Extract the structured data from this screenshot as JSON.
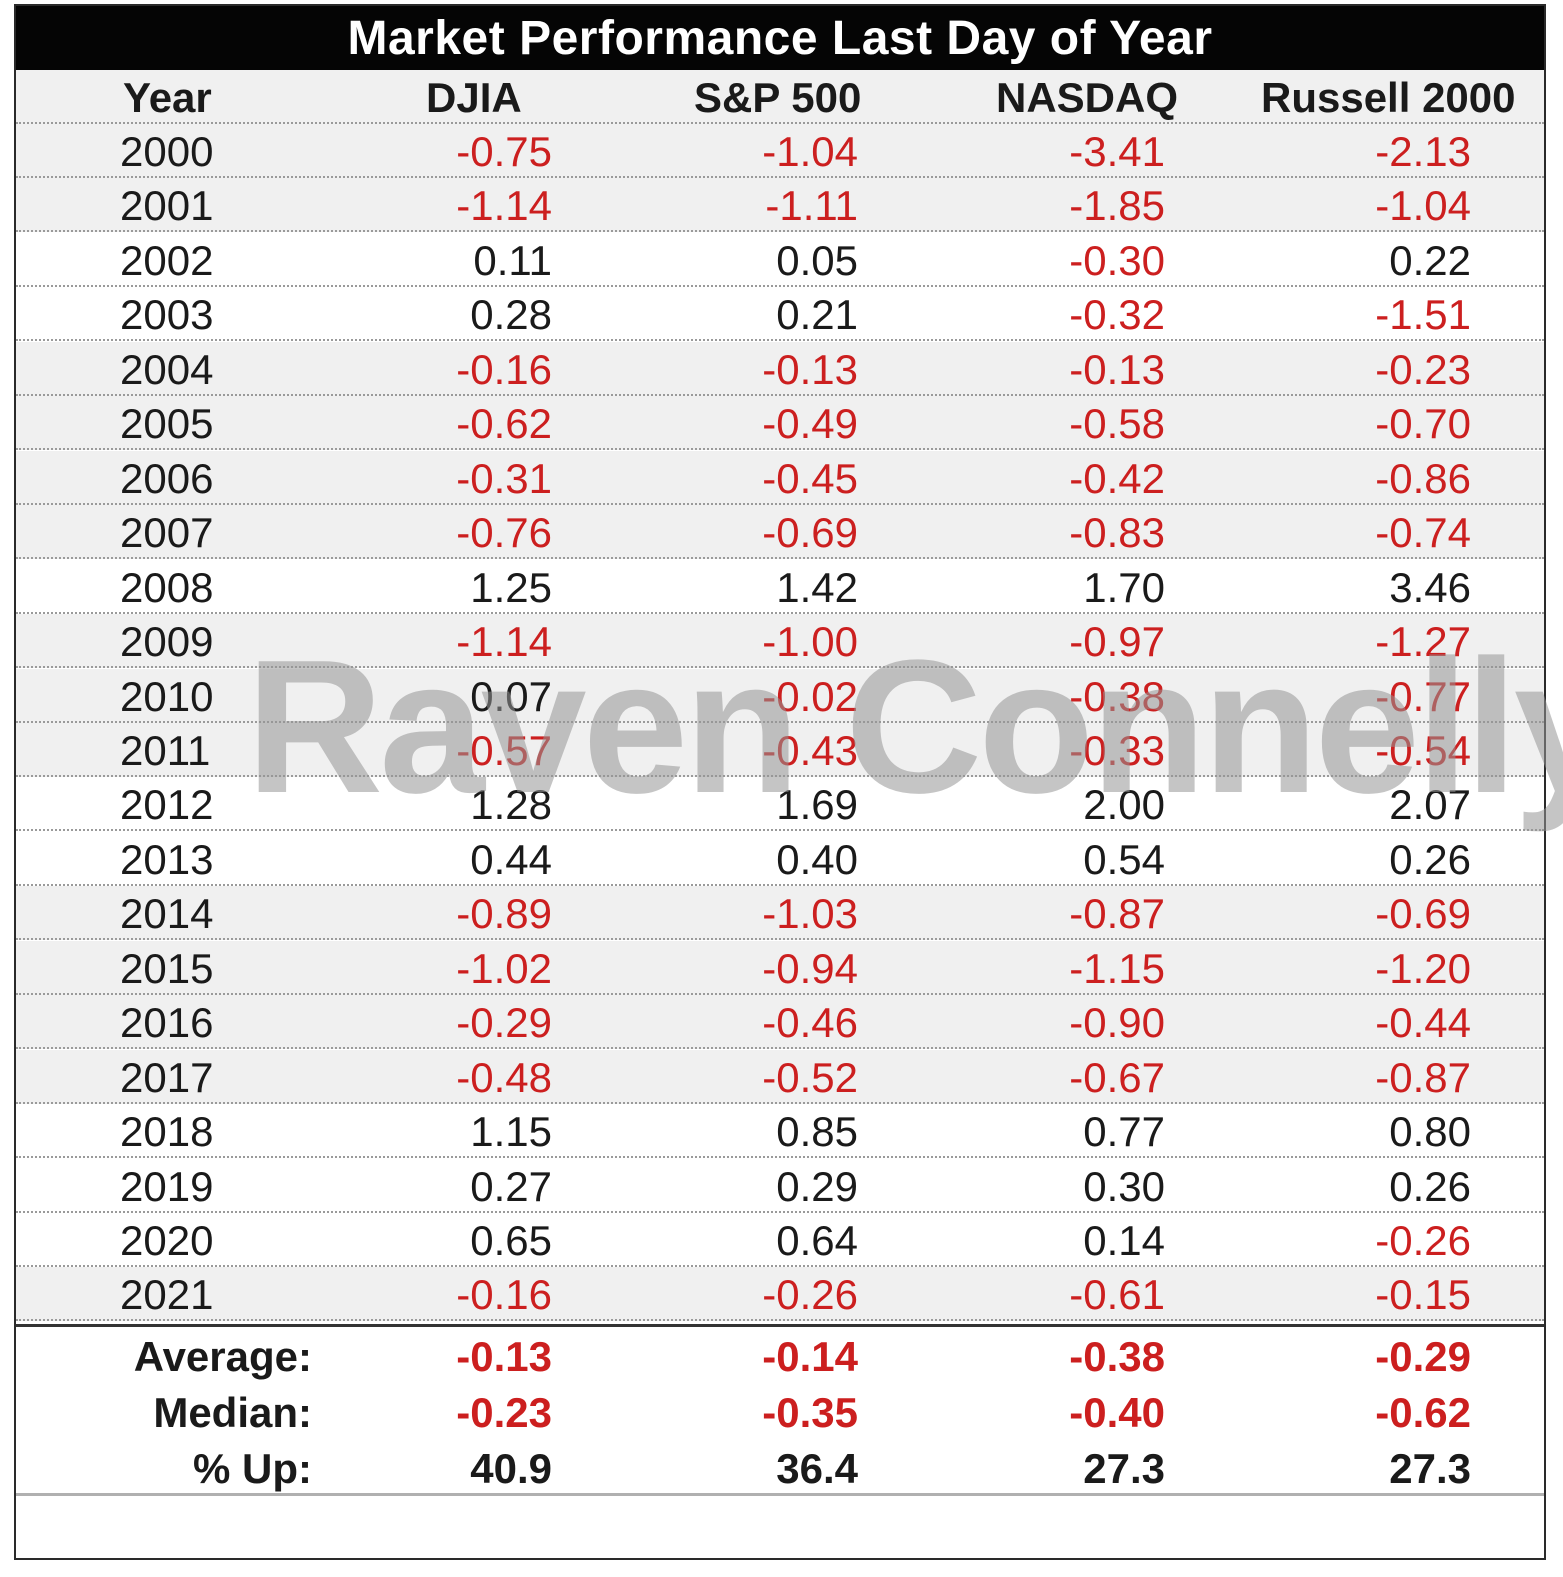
{
  "chart_data": {
    "type": "table",
    "title": "Market Performance Last Day of Year",
    "columns": [
      "Year",
      "DJIA",
      "S&P 500",
      "NASDAQ",
      "Russell 2000"
    ],
    "rows": [
      {
        "year": "2000",
        "values": [
          "-0.75",
          "-1.04",
          "-3.41",
          "-2.13"
        ]
      },
      {
        "year": "2001",
        "values": [
          "-1.14",
          "-1.11",
          "-1.85",
          "-1.04"
        ]
      },
      {
        "year": "2002",
        "values": [
          "0.11",
          "0.05",
          "-0.30",
          "0.22"
        ]
      },
      {
        "year": "2003",
        "values": [
          "0.28",
          "0.21",
          "-0.32",
          "-1.51"
        ]
      },
      {
        "year": "2004",
        "values": [
          "-0.16",
          "-0.13",
          "-0.13",
          "-0.23"
        ]
      },
      {
        "year": "2005",
        "values": [
          "-0.62",
          "-0.49",
          "-0.58",
          "-0.70"
        ]
      },
      {
        "year": "2006",
        "values": [
          "-0.31",
          "-0.45",
          "-0.42",
          "-0.86"
        ]
      },
      {
        "year": "2007",
        "values": [
          "-0.76",
          "-0.69",
          "-0.83",
          "-0.74"
        ]
      },
      {
        "year": "2008",
        "values": [
          "1.25",
          "1.42",
          "1.70",
          "3.46"
        ]
      },
      {
        "year": "2009",
        "values": [
          "-1.14",
          "-1.00",
          "-0.97",
          "-1.27"
        ]
      },
      {
        "year": "2010",
        "values": [
          "0.07",
          "-0.02",
          "-0.38",
          "-0.77"
        ]
      },
      {
        "year": "2011",
        "values": [
          "-0.57",
          "-0.43",
          "-0.33",
          "-0.54"
        ]
      },
      {
        "year": "2012",
        "values": [
          "1.28",
          "1.69",
          "2.00",
          "2.07"
        ]
      },
      {
        "year": "2013",
        "values": [
          "0.44",
          "0.40",
          "0.54",
          "0.26"
        ]
      },
      {
        "year": "2014",
        "values": [
          "-0.89",
          "-1.03",
          "-0.87",
          "-0.69"
        ]
      },
      {
        "year": "2015",
        "values": [
          "-1.02",
          "-0.94",
          "-1.15",
          "-1.20"
        ]
      },
      {
        "year": "2016",
        "values": [
          "-0.29",
          "-0.46",
          "-0.90",
          "-0.44"
        ]
      },
      {
        "year": "2017",
        "values": [
          "-0.48",
          "-0.52",
          "-0.67",
          "-0.87"
        ]
      },
      {
        "year": "2018",
        "values": [
          "1.15",
          "0.85",
          "0.77",
          "0.80"
        ]
      },
      {
        "year": "2019",
        "values": [
          "0.27",
          "0.29",
          "0.30",
          "0.26"
        ]
      },
      {
        "year": "2020",
        "values": [
          "0.65",
          "0.64",
          "0.14",
          "-0.26"
        ]
      },
      {
        "year": "2021",
        "values": [
          "-0.16",
          "-0.26",
          "-0.61",
          "-0.15"
        ]
      }
    ],
    "summary": [
      {
        "label": "Average:",
        "values": [
          "-0.13",
          "-0.14",
          "-0.38",
          "-0.29"
        ]
      },
      {
        "label": "Median:",
        "values": [
          "-0.23",
          "-0.35",
          "-0.40",
          "-0.62"
        ]
      },
      {
        "label": "% Up:",
        "values": [
          "40.9",
          "36.4",
          "27.3",
          "27.3"
        ]
      }
    ],
    "colors": {
      "negative": "#cc1f1f",
      "positive": "#1a1a1a",
      "header_bg": "#050505",
      "shade": "#f0f0f0"
    }
  },
  "watermark": "Raven Connelly"
}
